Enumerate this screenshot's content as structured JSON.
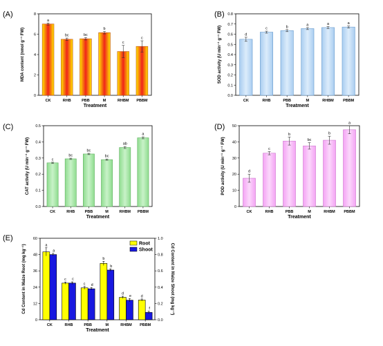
{
  "chart_data": [
    {
      "id": "A",
      "type": "bar",
      "panel_label": "(A)",
      "xlabel": "Treatment",
      "ylabel": "MDA content (nmol g⁻¹ FW)",
      "categories": [
        "CK",
        "RHB",
        "PBB",
        "M",
        "RHBM",
        "PBBM"
      ],
      "values": [
        7.0,
        5.5,
        5.55,
        6.15,
        4.3,
        4.8
      ],
      "errors": [
        0.1,
        0.12,
        0.12,
        0.12,
        0.6,
        0.55
      ],
      "letters": [
        "a",
        "bc",
        "bc",
        "b",
        "c",
        "c"
      ],
      "ylim": [
        0,
        8
      ],
      "yticks": [
        "0",
        "2",
        "4",
        "6",
        "8"
      ],
      "bar_colors": {
        "edge": "#ffe600",
        "center": "#f0241a",
        "stroke": "#c0501a"
      }
    },
    {
      "id": "B",
      "type": "bar",
      "panel_label": "(B)",
      "xlabel": "Treatment",
      "ylabel": "SOD activity (U min⁻¹ g⁻¹ FW)",
      "categories": [
        "CK",
        "RHB",
        "PBB",
        "M",
        "RHBM",
        "PBBM"
      ],
      "values": [
        0.55,
        0.62,
        0.635,
        0.655,
        0.665,
        0.67
      ],
      "errors": [
        0.02,
        0.01,
        0.01,
        0.01,
        0.01,
        0.01
      ],
      "letters": [
        "d",
        "c",
        "b",
        "a",
        "a",
        "a"
      ],
      "ylim": [
        0,
        0.8
      ],
      "yticks": [
        "0.0",
        "0.1",
        "0.2",
        "0.3",
        "0.4",
        "0.5",
        "0.6",
        "0.7",
        "0.8"
      ],
      "bar_colors": {
        "edge": "#a9cdf0",
        "center": "#dcecfb",
        "stroke": "#6a9ccd"
      }
    },
    {
      "id": "C",
      "type": "bar",
      "panel_label": "(C)",
      "xlabel": "Treatment",
      "ylabel": "CAT activity (U min⁻¹ g⁻¹ FW)",
      "categories": [
        "CK",
        "RHB",
        "PBB",
        "M",
        "RHBM",
        "PBBM"
      ],
      "values": [
        0.27,
        0.295,
        0.325,
        0.29,
        0.365,
        0.425
      ],
      "errors": [
        0.004,
        0.004,
        0.004,
        0.004,
        0.006,
        0.006
      ],
      "letters": [
        "c",
        "bc",
        "bc",
        "bc",
        "ab",
        "a"
      ],
      "ylim": [
        0,
        0.5
      ],
      "yticks": [
        "0.0",
        "0.1",
        "0.2",
        "0.3",
        "0.4",
        "0.5"
      ],
      "bar_colors": {
        "edge": "#8fdc8f",
        "center": "#c8f2c8",
        "stroke": "#5fb05f"
      }
    },
    {
      "id": "D",
      "type": "bar",
      "panel_label": "(D)",
      "xlabel": "Treatment",
      "ylabel": "POD activity (U min⁻¹ g⁻¹ FW)",
      "categories": [
        "CK",
        "RHB",
        "PBB",
        "M",
        "RHBM",
        "PBBM"
      ],
      "values": [
        17.5,
        33.0,
        40.5,
        37.5,
        41.0,
        47.5
      ],
      "errors": [
        2.5,
        1.0,
        2.5,
        2.0,
        2.5,
        2.5
      ],
      "letters": [
        "d",
        "c",
        "b",
        "bc",
        "b",
        "a"
      ],
      "ylim": [
        0,
        50
      ],
      "yticks": [
        "0",
        "10",
        "20",
        "30",
        "40",
        "50"
      ],
      "bar_colors": {
        "edge": "#f4a3f4",
        "center": "#fbd8fb",
        "stroke": "#cc77cc"
      }
    },
    {
      "id": "E",
      "type": "bar",
      "panel_label": "(E)",
      "xlabel": "Treatment",
      "ylabel": "Cd Content in Maize Root (mg kg⁻¹)",
      "ylabel_right": "Cd Content in Maize Shoot (mg kg⁻¹)",
      "categories": [
        "CK",
        "RHB",
        "PBB",
        "M",
        "RHBM",
        "PBBM"
      ],
      "ylim": [
        0,
        60
      ],
      "yticks": [
        "0",
        "12",
        "24",
        "36",
        "48",
        "60"
      ],
      "ylim_right": [
        0,
        1.0
      ],
      "yticks_right": [
        "0.0",
        "0.2",
        "0.4",
        "0.6",
        "0.8",
        "1.0"
      ],
      "series": [
        {
          "name": "Root",
          "axis": "left",
          "values": [
            50.0,
            27.0,
            23.5,
            41.5,
            16.5,
            14.5
          ],
          "errors": [
            3.0,
            0.8,
            1.0,
            1.5,
            0.8,
            0.8
          ],
          "letters": [
            "a",
            "c",
            "c",
            "b",
            "d",
            "d"
          ],
          "color": "#ffff00"
        },
        {
          "name": "Shoot",
          "axis": "right",
          "values": [
            0.8,
            0.45,
            0.38,
            0.61,
            0.24,
            0.09
          ],
          "errors": [
            0.015,
            0.015,
            0.015,
            0.015,
            0.02,
            0.015
          ],
          "letters": [
            "a",
            "c",
            "d",
            "b",
            "e",
            "f"
          ],
          "color": "#1818e0"
        }
      ]
    }
  ]
}
